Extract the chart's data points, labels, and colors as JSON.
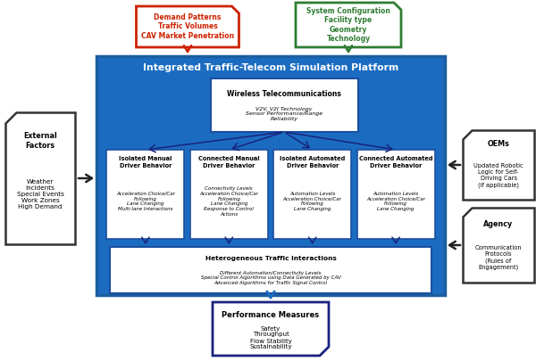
{
  "title": "Integrated Traffic-Telecom Simulation Platform",
  "blue_bg": "#1B6CC1",
  "blue_border": "#1B5EA0",
  "fig_bg": "#FFFFFF",
  "demand_box": {
    "text": "Demand Patterns\nTraffic Volumes\nCAV Market Penetration",
    "border_color": "#CC2200",
    "text_color": "#CC2200"
  },
  "system_box": {
    "text": "System Configuration\nFacility type\nGeometry\nTechnology",
    "border_color": "#2E7D32",
    "text_color": "#2E7D32"
  },
  "external_box": {
    "title": "External\nFactors",
    "text": "Weather\nIncidents\nSpecial Events\nWork Zones\nHigh Demand"
  },
  "oem_box": {
    "title": "OEMs",
    "text": "Updated Robotic\nLogic for Self-\nDriving Cars\n(if applicable)"
  },
  "agency_box": {
    "title": "Agency",
    "text": "Communication\nProtocols\n(Rules of\nEngagement)"
  },
  "wireless_box": {
    "title": "Wireless Telecommunications",
    "text": "V2V, V2I Technology\nSensor Performance/Range\nReliability"
  },
  "behavior_boxes": [
    {
      "title": "Isolated Manual\nDriver Behavior",
      "text": "Acceleration Choice/Car\nFollowing\nLane Changing\nMulti-lane Interactions"
    },
    {
      "title": "Connected Manual\nDriver Behavior",
      "text": "Connectivity Levels\nAcceleration Choice/Car\nFollowing\nLane Changing\nResponse to Control\nActions"
    },
    {
      "title": "Isolated Automated\nDriver Behavior",
      "text": "Automation Levels\nAcceleration Choice/Car\nFollowing\nLane Changing"
    },
    {
      "title": "Connected Automated\nDriver Behavior",
      "text": "Automation Levels\nAcceleration Choice/Car\nFollowing\nLane Changing"
    }
  ],
  "hetero_box": {
    "title": "Heterogeneous Traffic Interactions",
    "text": "Different Automation/Connectivity Levels\nSpecial Control Algorithms using Data Generated by CAV\nAdvanced Algorithms for Traffic Signal Control"
  },
  "performance_box": {
    "title": "Performance Measures",
    "text": "Safety\nThroughput\nFlow Stability\nSustainability",
    "border_color": "#1A237E"
  },
  "inner_box_edge": "#1B4FA0",
  "arrow_dark": "#1A237E",
  "arrow_black": "#222222"
}
